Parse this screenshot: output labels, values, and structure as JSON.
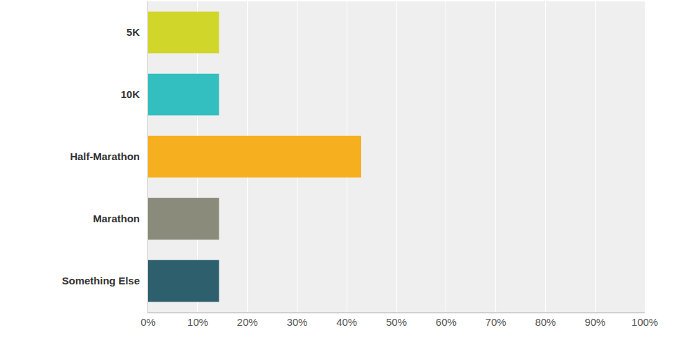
{
  "chart_data": {
    "type": "bar",
    "orientation": "horizontal",
    "categories": [
      "5K",
      "10K",
      "Half-Marathon",
      "Marathon",
      "Something Else"
    ],
    "values": [
      14.3,
      14.3,
      42.9,
      14.3,
      14.3
    ],
    "colors": [
      "#d0d62a",
      "#33bec0",
      "#f6af1f",
      "#8a8b7a",
      "#2e5f6d"
    ],
    "xlim": [
      0,
      100
    ],
    "xticks": [
      {
        "value": 0,
        "label": "0%"
      },
      {
        "value": 10,
        "label": "10%"
      },
      {
        "value": 20,
        "label": "20%"
      },
      {
        "value": 30,
        "label": "30%"
      },
      {
        "value": 40,
        "label": "40%"
      },
      {
        "value": 50,
        "label": "50%"
      },
      {
        "value": 60,
        "label": "60%"
      },
      {
        "value": 70,
        "label": "70%"
      },
      {
        "value": 80,
        "label": "80%"
      },
      {
        "value": 90,
        "label": "90%"
      },
      {
        "value": 100,
        "label": "100%"
      }
    ],
    "grid": true
  }
}
